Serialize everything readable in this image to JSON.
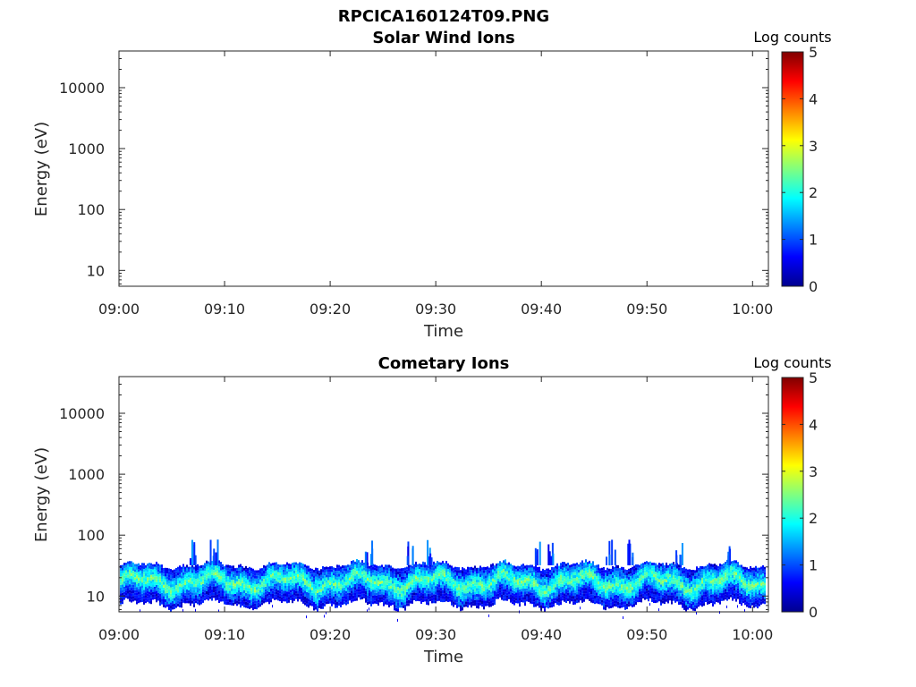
{
  "figure_title": "RPCICA160124T09.PNG",
  "chart_data": [
    {
      "type": "heatmap",
      "title": "Solar Wind Ions",
      "xlabel": "Time",
      "ylabel": "Energy (eV)",
      "x_tick_labels": [
        "09:00",
        "09:10",
        "09:20",
        "09:30",
        "09:40",
        "09:50",
        "10:00"
      ],
      "x_range_minutes": [
        0,
        61.5
      ],
      "y_scale": "log",
      "y_range": [
        5.5,
        40000
      ],
      "y_ticks": [
        10,
        100,
        1000,
        10000
      ],
      "y_tick_labels": [
        "10",
        "100",
        "1000",
        "10000"
      ],
      "colorbar": {
        "title": "Log counts",
        "range": [
          0,
          5
        ],
        "ticks": [
          "0",
          "1",
          "2",
          "3",
          "4",
          "5"
        ],
        "colormap": "jet"
      },
      "band": null
    },
    {
      "type": "heatmap",
      "title": "Cometary Ions",
      "xlabel": "Time",
      "ylabel": "Energy (eV)",
      "x_tick_labels": [
        "09:00",
        "09:10",
        "09:20",
        "09:30",
        "09:40",
        "09:50",
        "10:00"
      ],
      "x_range_minutes": [
        0,
        61.5
      ],
      "y_scale": "log",
      "y_range": [
        5.5,
        40000
      ],
      "y_ticks": [
        10,
        100,
        1000,
        10000
      ],
      "y_tick_labels": [
        "10",
        "100",
        "1000",
        "10000"
      ],
      "colorbar": {
        "title": "Log counts",
        "range": [
          0,
          5
        ],
        "ticks": [
          "0",
          "1",
          "2",
          "3",
          "4",
          "5"
        ],
        "colormap": "jet"
      },
      "band": {
        "energy_center_ev": 17,
        "energy_low_ev": 8,
        "energy_high_ev": 30,
        "peak_log_counts": 2.8,
        "spikes_minutes": [
          7,
          9,
          23.5,
          27.5,
          29.5,
          39.5,
          41,
          46.5,
          48.5,
          53,
          58
        ]
      }
    }
  ]
}
